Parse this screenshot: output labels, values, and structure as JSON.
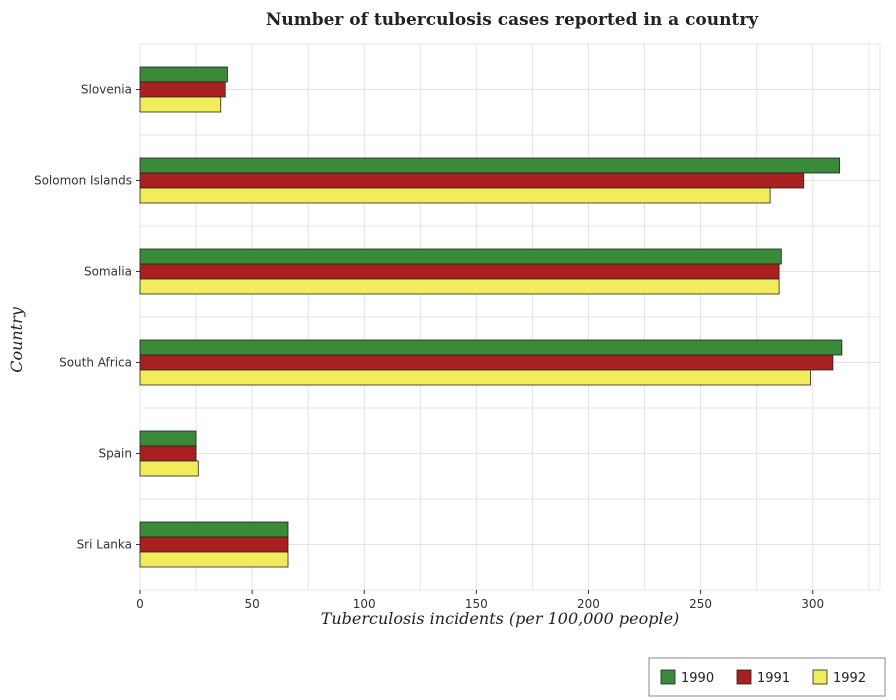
{
  "chart_data": {
    "type": "bar",
    "orientation": "horizontal",
    "title": "Number of tuberculosis cases reported in a country",
    "xlabel": "Tuberculosis incidents (per 100,000 people)",
    "ylabel": "Country",
    "categories": [
      "Slovenia",
      "Solomon Islands",
      "Somalia",
      "South Africa",
      "Spain",
      "Sri Lanka"
    ],
    "series": [
      {
        "name": "1990",
        "color": "#3a8a3a",
        "values": [
          39,
          312,
          286,
          313,
          25,
          66
        ]
      },
      {
        "name": "1991",
        "color": "#a82020",
        "values": [
          38,
          296,
          285,
          309,
          25,
          66
        ]
      },
      {
        "name": "1992",
        "color": "#f2ec5c",
        "values": [
          36,
          281,
          285,
          299,
          26,
          66
        ]
      }
    ],
    "xlim": [
      0,
      330
    ],
    "xticks": [
      0,
      50,
      100,
      150,
      200,
      250,
      300
    ],
    "grid": true,
    "legend_position": "bottom-right"
  }
}
